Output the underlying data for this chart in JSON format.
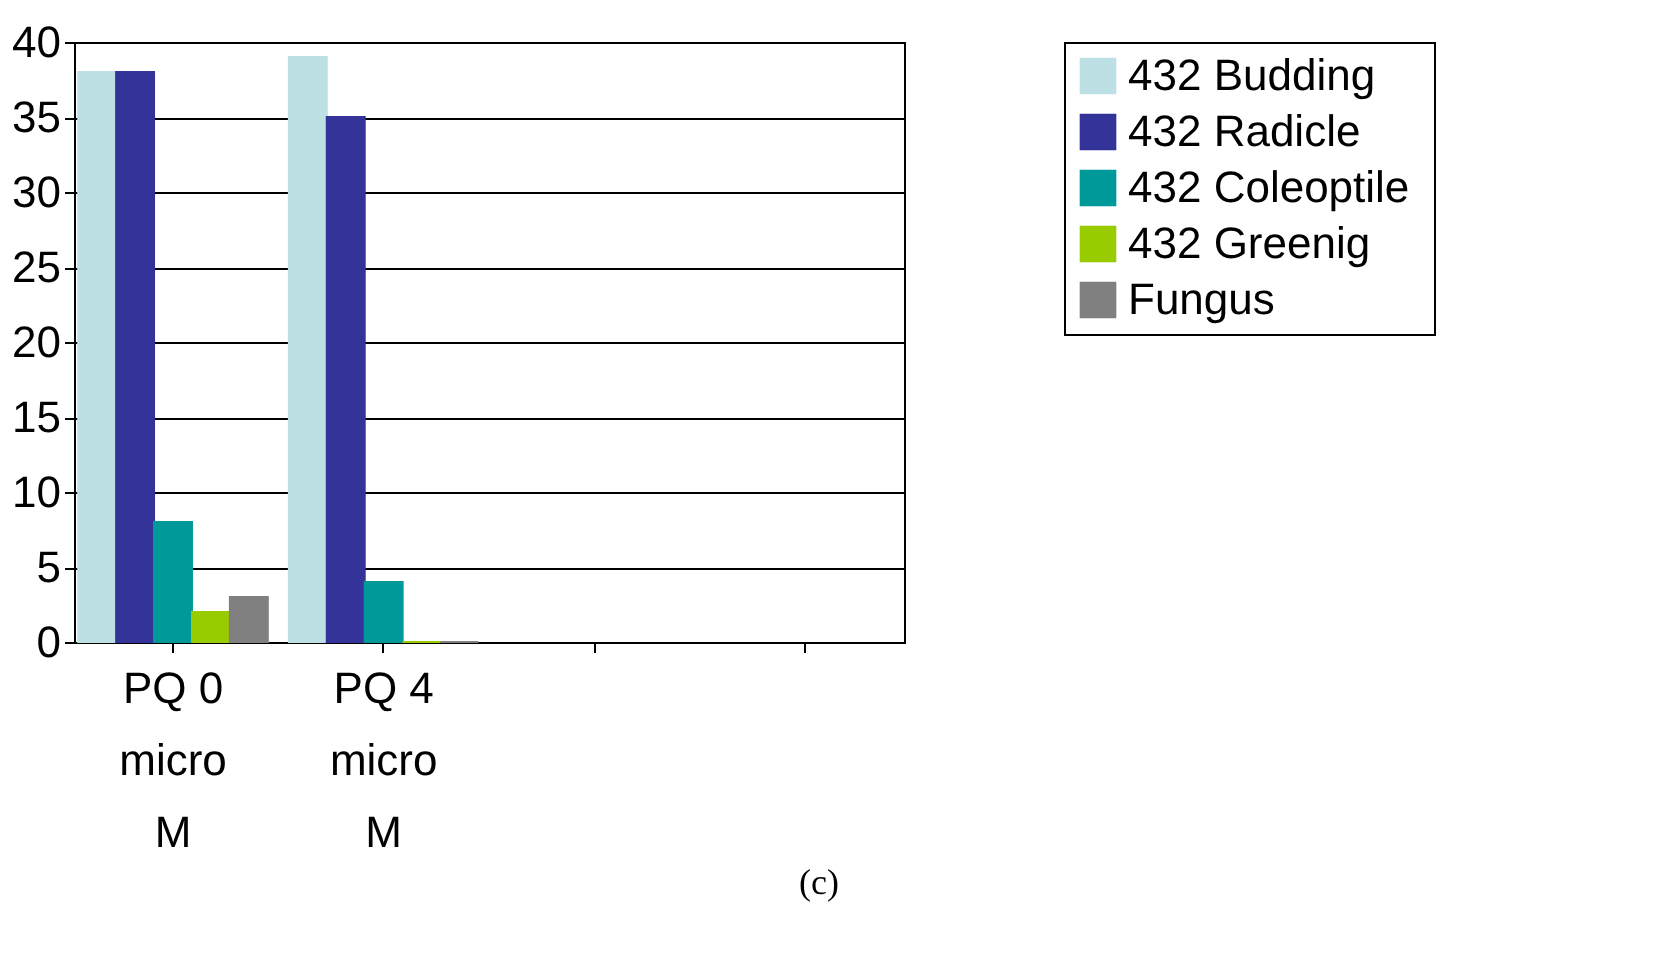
{
  "chart_data": {
    "type": "bar",
    "categories": [
      "PQ 0 micro M",
      "PQ 4 micro M",
      null,
      null
    ],
    "series": [
      {
        "name": "432  Budding",
        "color": "#bce0e3",
        "values": [
          38,
          39,
          null,
          null
        ]
      },
      {
        "name": "432  Radicle",
        "color": "#333399",
        "values": [
          38,
          35,
          null,
          null
        ]
      },
      {
        "name": "432  Coleoptile",
        "color": "#009999",
        "values": [
          8,
          4,
          null,
          null
        ]
      },
      {
        "name": "432  Greenig",
        "color": "#99cc00",
        "values": [
          2,
          0,
          null,
          null
        ]
      },
      {
        "name": "Fungus",
        "color": "#808080",
        "values": [
          3,
          0,
          null,
          null
        ]
      }
    ],
    "ylim": [
      0,
      40
    ],
    "yticks": [
      0,
      5,
      10,
      15,
      20,
      25,
      30,
      35,
      40
    ],
    "grid": "y",
    "legend": "right",
    "annotations": [
      "(c)"
    ]
  }
}
